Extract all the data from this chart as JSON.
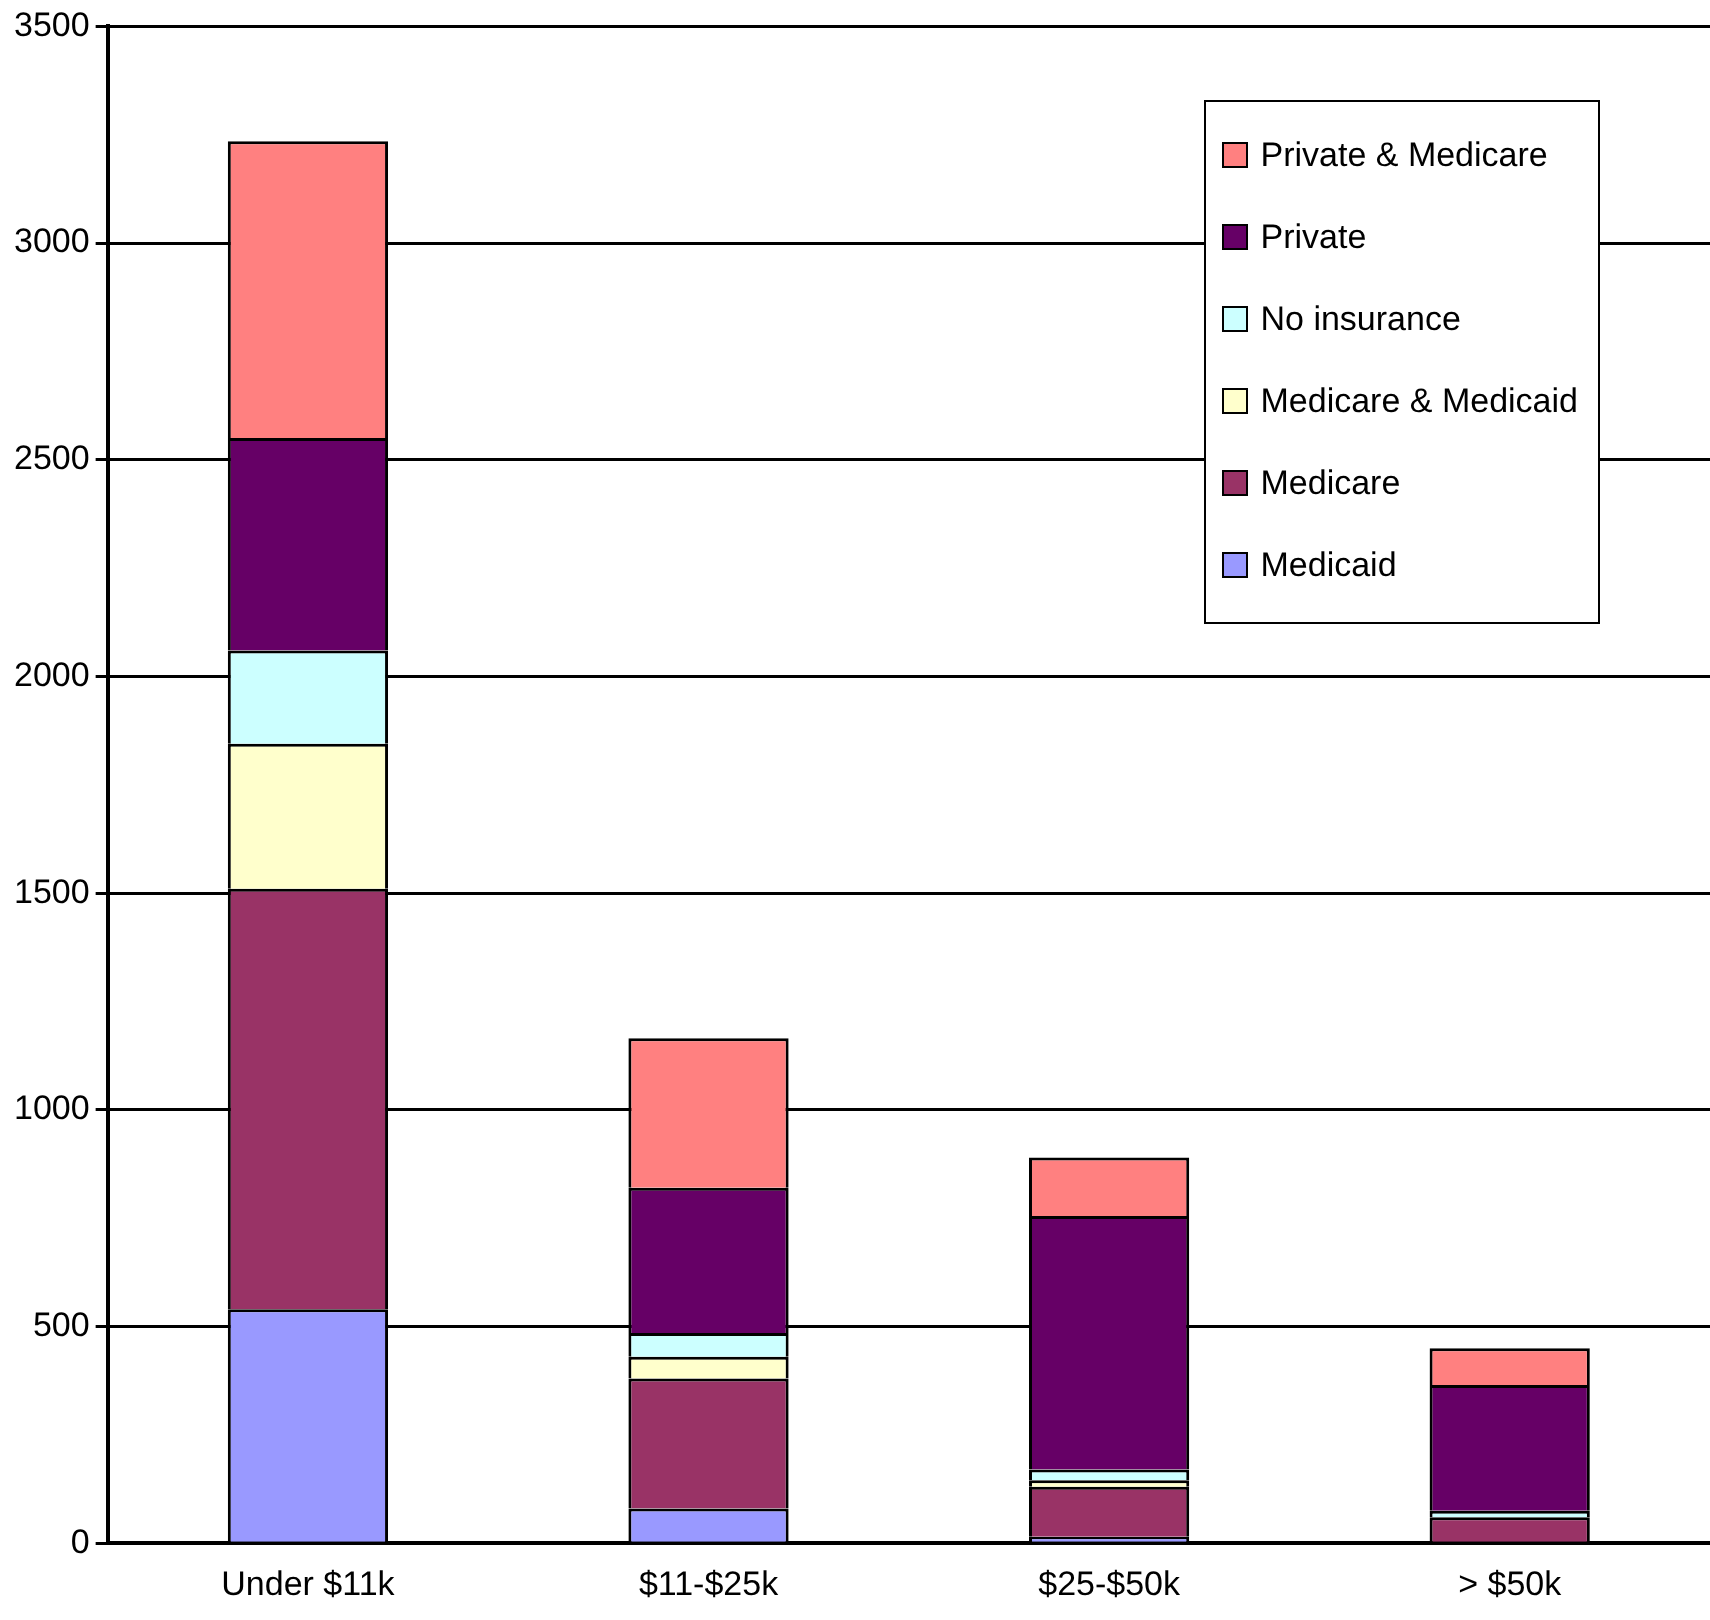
{
  "chart_data": {
    "type": "bar",
    "stacked": true,
    "categories": [
      "Under $11k",
      "$11-$25k",
      "$25-$50k",
      "> $50k"
    ],
    "series": [
      {
        "name": "Medicaid",
        "color": "#9999ff",
        "values": [
          540,
          80,
          15,
          0
        ]
      },
      {
        "name": "Medicare",
        "color": "#993366",
        "values": [
          970,
          300,
          115,
          60
        ]
      },
      {
        "name": "Medicare & Medicaid",
        "color": "#ffffcc",
        "values": [
          335,
          50,
          15,
          null
        ]
      },
      {
        "name": "No insurance",
        "color": "#ccffff",
        "values": [
          215,
          55,
          25,
          15
        ]
      },
      {
        "name": "Private",
        "color": "#660066",
        "values": [
          490,
          335,
          585,
          290
        ]
      },
      {
        "name": "Private & Medicare",
        "color": "#ff8080",
        "values": [
          685,
          345,
          135,
          85
        ]
      }
    ],
    "ylim": [
      0,
      3500
    ],
    "yticks": [
      0,
      500,
      1000,
      1500,
      2000,
      2500,
      3000,
      3500
    ],
    "grid": "y",
    "legend": "top right"
  }
}
